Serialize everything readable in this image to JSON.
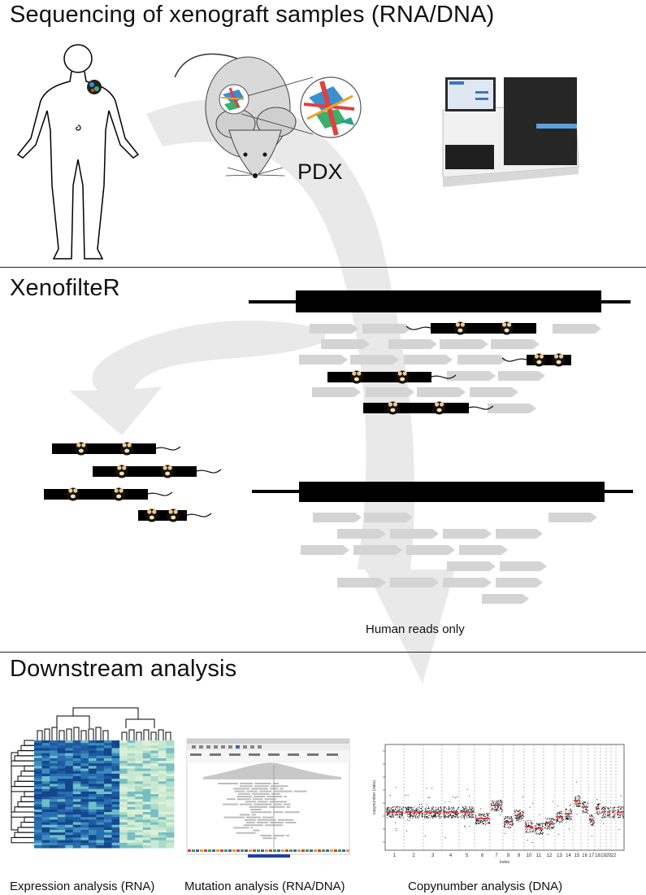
{
  "sections": {
    "sequencing": {
      "title": "Sequencing of xenograft samples (RNA/DNA)",
      "pdx_label": "PDX"
    },
    "xenofilter": {
      "title": "XenofilteR",
      "human_reads_label": "Human reads only"
    },
    "downstream": {
      "title": "Downstream analysis",
      "captions": {
        "expression": "Expression analysis (RNA)",
        "mutation": "Mutation analysis (RNA/DNA)",
        "copynumber": "Copynumber analysis (DNA)"
      },
      "cnv_xticks": [
        "1",
        "2",
        "3",
        "4",
        "5",
        "6",
        "7",
        "8",
        "9",
        "10",
        "11",
        "12",
        "13",
        "14",
        "15",
        "16",
        "17",
        "18",
        "19",
        "20",
        "22"
      ],
      "cnv_xlabel": "Index",
      "cnv_ylabel": "copynumber (ratio)"
    }
  },
  "colors": {
    "line": "#000000",
    "read": "#d4d4d4",
    "arrow": "#e8e8e8",
    "red": "#e02020",
    "heat_dark": "#1f5f9e",
    "heat_light": "#d6efd8"
  }
}
